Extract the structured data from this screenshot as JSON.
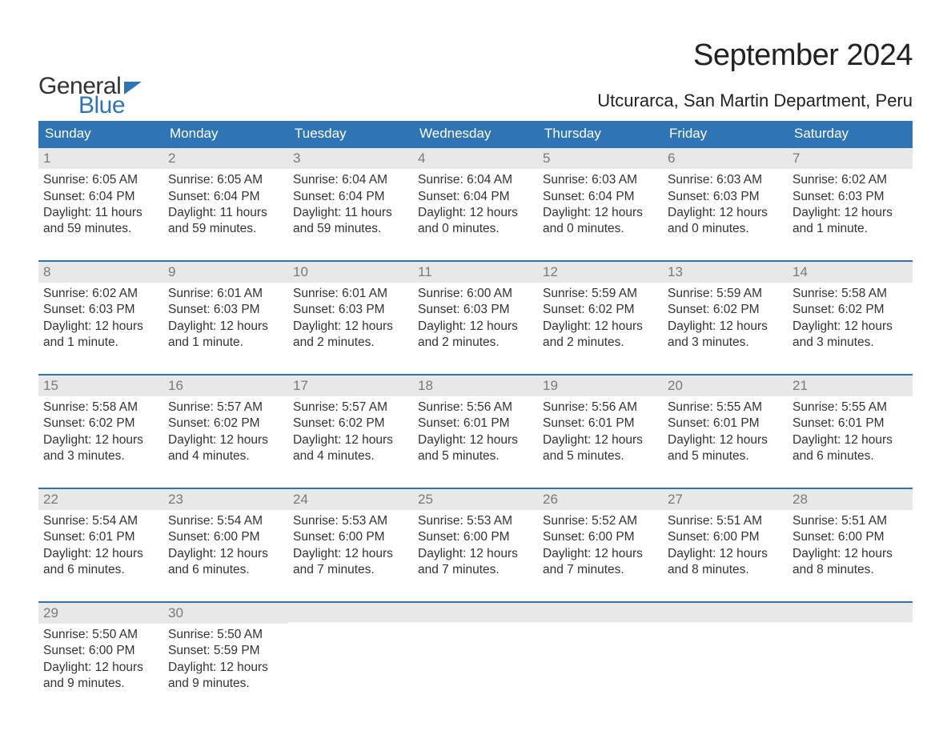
{
  "brand": {
    "general": "General",
    "blue": "Blue",
    "accent_color": "#2f75b5"
  },
  "header": {
    "month_title": "September 2024",
    "location": "Utcurarca, San Martin Department, Peru"
  },
  "calendar": {
    "type": "table",
    "columns": [
      "Sunday",
      "Monday",
      "Tuesday",
      "Wednesday",
      "Thursday",
      "Friday",
      "Saturday"
    ],
    "header_bg": "#2f75b5",
    "header_fg": "#ffffff",
    "daynum_bg": "#e8e8e8",
    "daynum_fg": "#7a7a7a",
    "row_border_color": "#2f75b5",
    "body_fontsize_pt": 12,
    "header_fontsize_pt": 13,
    "weeks": [
      [
        {
          "day": "1",
          "sunrise": "Sunrise: 6:05 AM",
          "sunset": "Sunset: 6:04 PM",
          "dl1": "Daylight: 11 hours",
          "dl2": "and 59 minutes."
        },
        {
          "day": "2",
          "sunrise": "Sunrise: 6:05 AM",
          "sunset": "Sunset: 6:04 PM",
          "dl1": "Daylight: 11 hours",
          "dl2": "and 59 minutes."
        },
        {
          "day": "3",
          "sunrise": "Sunrise: 6:04 AM",
          "sunset": "Sunset: 6:04 PM",
          "dl1": "Daylight: 11 hours",
          "dl2": "and 59 minutes."
        },
        {
          "day": "4",
          "sunrise": "Sunrise: 6:04 AM",
          "sunset": "Sunset: 6:04 PM",
          "dl1": "Daylight: 12 hours",
          "dl2": "and 0 minutes."
        },
        {
          "day": "5",
          "sunrise": "Sunrise: 6:03 AM",
          "sunset": "Sunset: 6:04 PM",
          "dl1": "Daylight: 12 hours",
          "dl2": "and 0 minutes."
        },
        {
          "day": "6",
          "sunrise": "Sunrise: 6:03 AM",
          "sunset": "Sunset: 6:03 PM",
          "dl1": "Daylight: 12 hours",
          "dl2": "and 0 minutes."
        },
        {
          "day": "7",
          "sunrise": "Sunrise: 6:02 AM",
          "sunset": "Sunset: 6:03 PM",
          "dl1": "Daylight: 12 hours",
          "dl2": "and 1 minute."
        }
      ],
      [
        {
          "day": "8",
          "sunrise": "Sunrise: 6:02 AM",
          "sunset": "Sunset: 6:03 PM",
          "dl1": "Daylight: 12 hours",
          "dl2": "and 1 minute."
        },
        {
          "day": "9",
          "sunrise": "Sunrise: 6:01 AM",
          "sunset": "Sunset: 6:03 PM",
          "dl1": "Daylight: 12 hours",
          "dl2": "and 1 minute."
        },
        {
          "day": "10",
          "sunrise": "Sunrise: 6:01 AM",
          "sunset": "Sunset: 6:03 PM",
          "dl1": "Daylight: 12 hours",
          "dl2": "and 2 minutes."
        },
        {
          "day": "11",
          "sunrise": "Sunrise: 6:00 AM",
          "sunset": "Sunset: 6:03 PM",
          "dl1": "Daylight: 12 hours",
          "dl2": "and 2 minutes."
        },
        {
          "day": "12",
          "sunrise": "Sunrise: 5:59 AM",
          "sunset": "Sunset: 6:02 PM",
          "dl1": "Daylight: 12 hours",
          "dl2": "and 2 minutes."
        },
        {
          "day": "13",
          "sunrise": "Sunrise: 5:59 AM",
          "sunset": "Sunset: 6:02 PM",
          "dl1": "Daylight: 12 hours",
          "dl2": "and 3 minutes."
        },
        {
          "day": "14",
          "sunrise": "Sunrise: 5:58 AM",
          "sunset": "Sunset: 6:02 PM",
          "dl1": "Daylight: 12 hours",
          "dl2": "and 3 minutes."
        }
      ],
      [
        {
          "day": "15",
          "sunrise": "Sunrise: 5:58 AM",
          "sunset": "Sunset: 6:02 PM",
          "dl1": "Daylight: 12 hours",
          "dl2": "and 3 minutes."
        },
        {
          "day": "16",
          "sunrise": "Sunrise: 5:57 AM",
          "sunset": "Sunset: 6:02 PM",
          "dl1": "Daylight: 12 hours",
          "dl2": "and 4 minutes."
        },
        {
          "day": "17",
          "sunrise": "Sunrise: 5:57 AM",
          "sunset": "Sunset: 6:02 PM",
          "dl1": "Daylight: 12 hours",
          "dl2": "and 4 minutes."
        },
        {
          "day": "18",
          "sunrise": "Sunrise: 5:56 AM",
          "sunset": "Sunset: 6:01 PM",
          "dl1": "Daylight: 12 hours",
          "dl2": "and 5 minutes."
        },
        {
          "day": "19",
          "sunrise": "Sunrise: 5:56 AM",
          "sunset": "Sunset: 6:01 PM",
          "dl1": "Daylight: 12 hours",
          "dl2": "and 5 minutes."
        },
        {
          "day": "20",
          "sunrise": "Sunrise: 5:55 AM",
          "sunset": "Sunset: 6:01 PM",
          "dl1": "Daylight: 12 hours",
          "dl2": "and 5 minutes."
        },
        {
          "day": "21",
          "sunrise": "Sunrise: 5:55 AM",
          "sunset": "Sunset: 6:01 PM",
          "dl1": "Daylight: 12 hours",
          "dl2": "and 6 minutes."
        }
      ],
      [
        {
          "day": "22",
          "sunrise": "Sunrise: 5:54 AM",
          "sunset": "Sunset: 6:01 PM",
          "dl1": "Daylight: 12 hours",
          "dl2": "and 6 minutes."
        },
        {
          "day": "23",
          "sunrise": "Sunrise: 5:54 AM",
          "sunset": "Sunset: 6:00 PM",
          "dl1": "Daylight: 12 hours",
          "dl2": "and 6 minutes."
        },
        {
          "day": "24",
          "sunrise": "Sunrise: 5:53 AM",
          "sunset": "Sunset: 6:00 PM",
          "dl1": "Daylight: 12 hours",
          "dl2": "and 7 minutes."
        },
        {
          "day": "25",
          "sunrise": "Sunrise: 5:53 AM",
          "sunset": "Sunset: 6:00 PM",
          "dl1": "Daylight: 12 hours",
          "dl2": "and 7 minutes."
        },
        {
          "day": "26",
          "sunrise": "Sunrise: 5:52 AM",
          "sunset": "Sunset: 6:00 PM",
          "dl1": "Daylight: 12 hours",
          "dl2": "and 7 minutes."
        },
        {
          "day": "27",
          "sunrise": "Sunrise: 5:51 AM",
          "sunset": "Sunset: 6:00 PM",
          "dl1": "Daylight: 12 hours",
          "dl2": "and 8 minutes."
        },
        {
          "day": "28",
          "sunrise": "Sunrise: 5:51 AM",
          "sunset": "Sunset: 6:00 PM",
          "dl1": "Daylight: 12 hours",
          "dl2": "and 8 minutes."
        }
      ],
      [
        {
          "day": "29",
          "sunrise": "Sunrise: 5:50 AM",
          "sunset": "Sunset: 6:00 PM",
          "dl1": "Daylight: 12 hours",
          "dl2": "and 9 minutes."
        },
        {
          "day": "30",
          "sunrise": "Sunrise: 5:50 AM",
          "sunset": "Sunset: 5:59 PM",
          "dl1": "Daylight: 12 hours",
          "dl2": "and 9 minutes."
        },
        null,
        null,
        null,
        null,
        null
      ]
    ]
  }
}
